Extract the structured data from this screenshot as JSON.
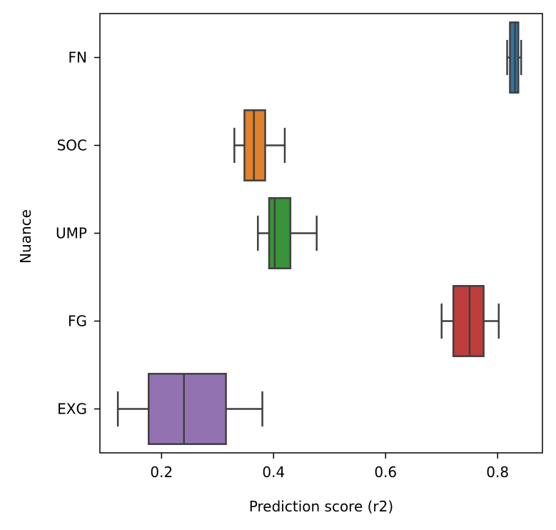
{
  "chart_data": {
    "type": "boxplot",
    "orientation": "horizontal",
    "xlabel": "Prediction score (r2)",
    "ylabel": "Nuance",
    "xlim": [
      0.09,
      0.88
    ],
    "xticks": [
      0.2,
      0.4,
      0.6,
      0.8
    ],
    "xtick_labels": [
      "0.2",
      "0.4",
      "0.6",
      "0.8"
    ],
    "grid": false,
    "edge_color": "#3f3f3f",
    "categories": [
      "FN",
      "SOC",
      "UMP",
      "FG",
      "EXG"
    ],
    "boxes": [
      {
        "category": "FN",
        "color": "#3274a1",
        "whisker_low": 0.817,
        "q1": 0.822,
        "median": 0.831,
        "q3": 0.837,
        "whisker_high": 0.842
      },
      {
        "category": "SOC",
        "color": "#e1812c",
        "whisker_low": 0.33,
        "q1": 0.348,
        "median": 0.365,
        "q3": 0.385,
        "whisker_high": 0.42
      },
      {
        "category": "UMP",
        "color": "#3a923a",
        "whisker_low": 0.372,
        "q1": 0.392,
        "median": 0.402,
        "q3": 0.43,
        "whisker_high": 0.477
      },
      {
        "category": "FG",
        "color": "#c03d3e",
        "whisker_low": 0.7,
        "q1": 0.721,
        "median": 0.75,
        "q3": 0.775,
        "whisker_high": 0.802
      },
      {
        "category": "EXG",
        "color": "#9372b2",
        "whisker_low": 0.122,
        "q1": 0.177,
        "median": 0.24,
        "q3": 0.315,
        "whisker_high": 0.38
      }
    ]
  }
}
